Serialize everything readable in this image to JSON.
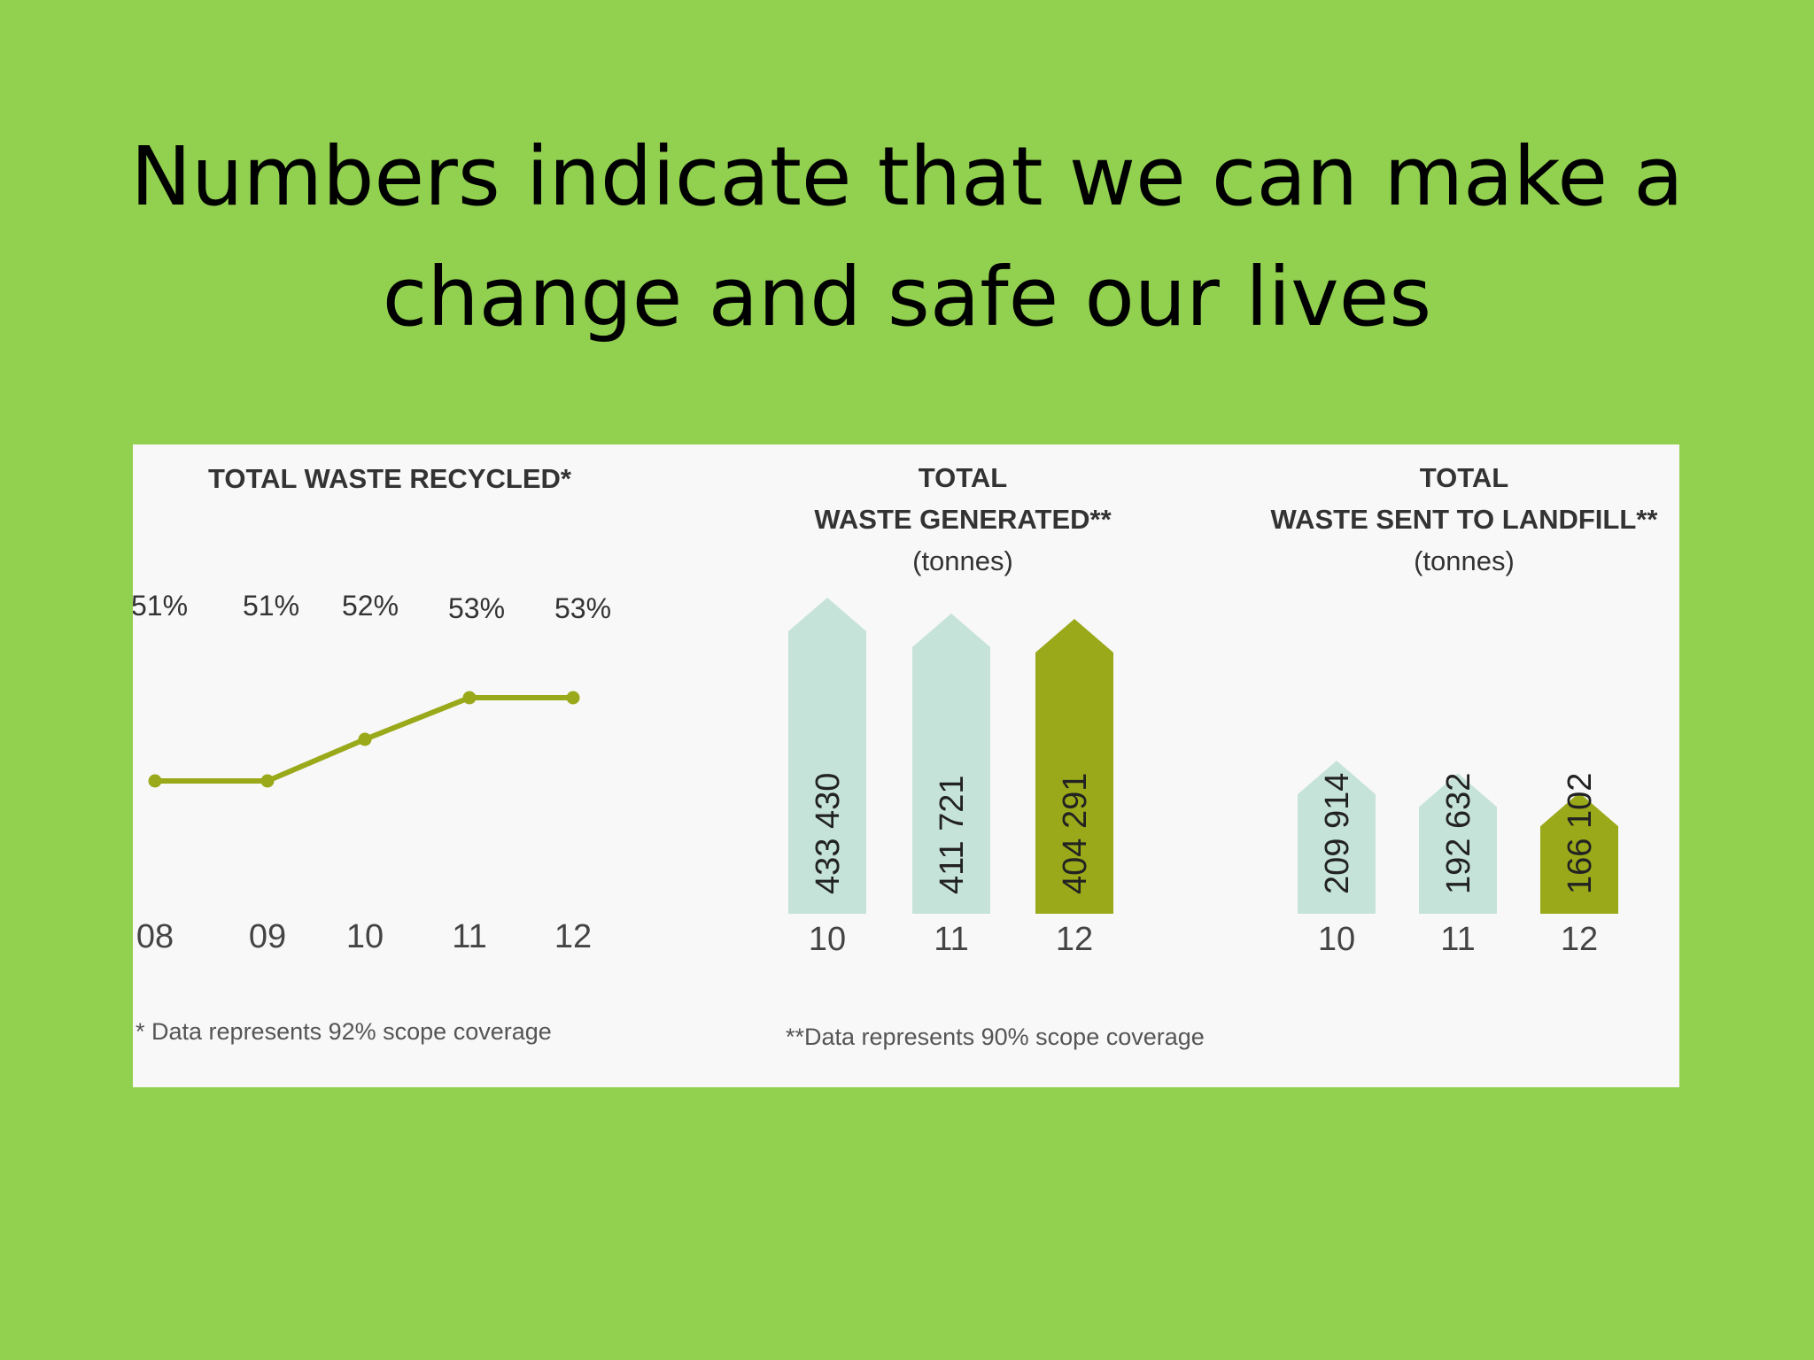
{
  "title": {
    "line1": "Numbers indicate that we can make a",
    "line2": "change and safe our lives"
  },
  "colors": {
    "background": "#92d050",
    "panel": "#f8f8f8",
    "accent": "#9aa91a",
    "light_bar": "#c6e3da",
    "text": "#333333"
  },
  "chart_data": [
    {
      "type": "line",
      "title": "TOTAL WASTE RECYCLED*",
      "x": [
        "08",
        "09",
        "10",
        "11",
        "12"
      ],
      "value_labels": [
        "51%",
        "51%",
        "52%",
        "53%",
        "53%"
      ],
      "values": [
        51,
        51,
        52,
        53,
        53
      ],
      "ylim": [
        49.5,
        54.5
      ],
      "footnote": "* Data represents 92% scope coverage"
    },
    {
      "type": "bar",
      "title_line1": "TOTAL",
      "title_line2": "WASTE GENERATED**",
      "unit": "(tonnes)",
      "categories": [
        "10",
        "11",
        "12"
      ],
      "value_labels": [
        "433 430",
        "411 721",
        "404 291"
      ],
      "values": [
        433430,
        411721,
        404291
      ],
      "highlight": [
        "light",
        "light",
        "accent"
      ]
    },
    {
      "type": "bar",
      "title_line1": "TOTAL",
      "title_line2": "WASTE SENT TO LANDFILL**",
      "unit": "(tonnes)",
      "categories": [
        "10",
        "11",
        "12"
      ],
      "value_labels": [
        "209 914",
        "192 632",
        "166 102"
      ],
      "values": [
        209914,
        192632,
        166102
      ],
      "highlight": [
        "light",
        "light",
        "accent"
      ],
      "footnote": "**Data represents 90% scope coverage"
    }
  ]
}
